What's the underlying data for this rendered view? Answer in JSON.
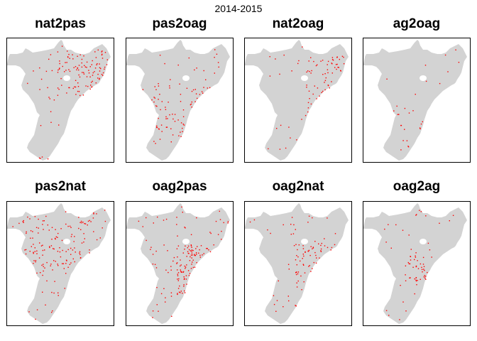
{
  "title": "2014-2015",
  "colors": {
    "land": "#d3d3d3",
    "points": "#ff0000",
    "frame": "#000000"
  },
  "panels": [
    {
      "title": "nat2pas",
      "seed": 11,
      "density": 130,
      "focus": "north-east"
    },
    {
      "title": "pas2oag",
      "seed": 23,
      "density": 90,
      "focus": "central-south"
    },
    {
      "title": "nat2oag",
      "seed": 37,
      "density": 80,
      "focus": "east"
    },
    {
      "title": "ag2oag",
      "seed": 41,
      "density": 28,
      "focus": "south"
    },
    {
      "title": "pas2nat",
      "seed": 53,
      "density": 160,
      "focus": "north"
    },
    {
      "title": "oag2pas",
      "seed": 67,
      "density": 150,
      "focus": "south-east"
    },
    {
      "title": "oag2nat",
      "seed": 71,
      "density": 90,
      "focus": "south-east"
    },
    {
      "title": "oag2ag",
      "seed": 89,
      "density": 70,
      "focus": "centre"
    }
  ]
}
